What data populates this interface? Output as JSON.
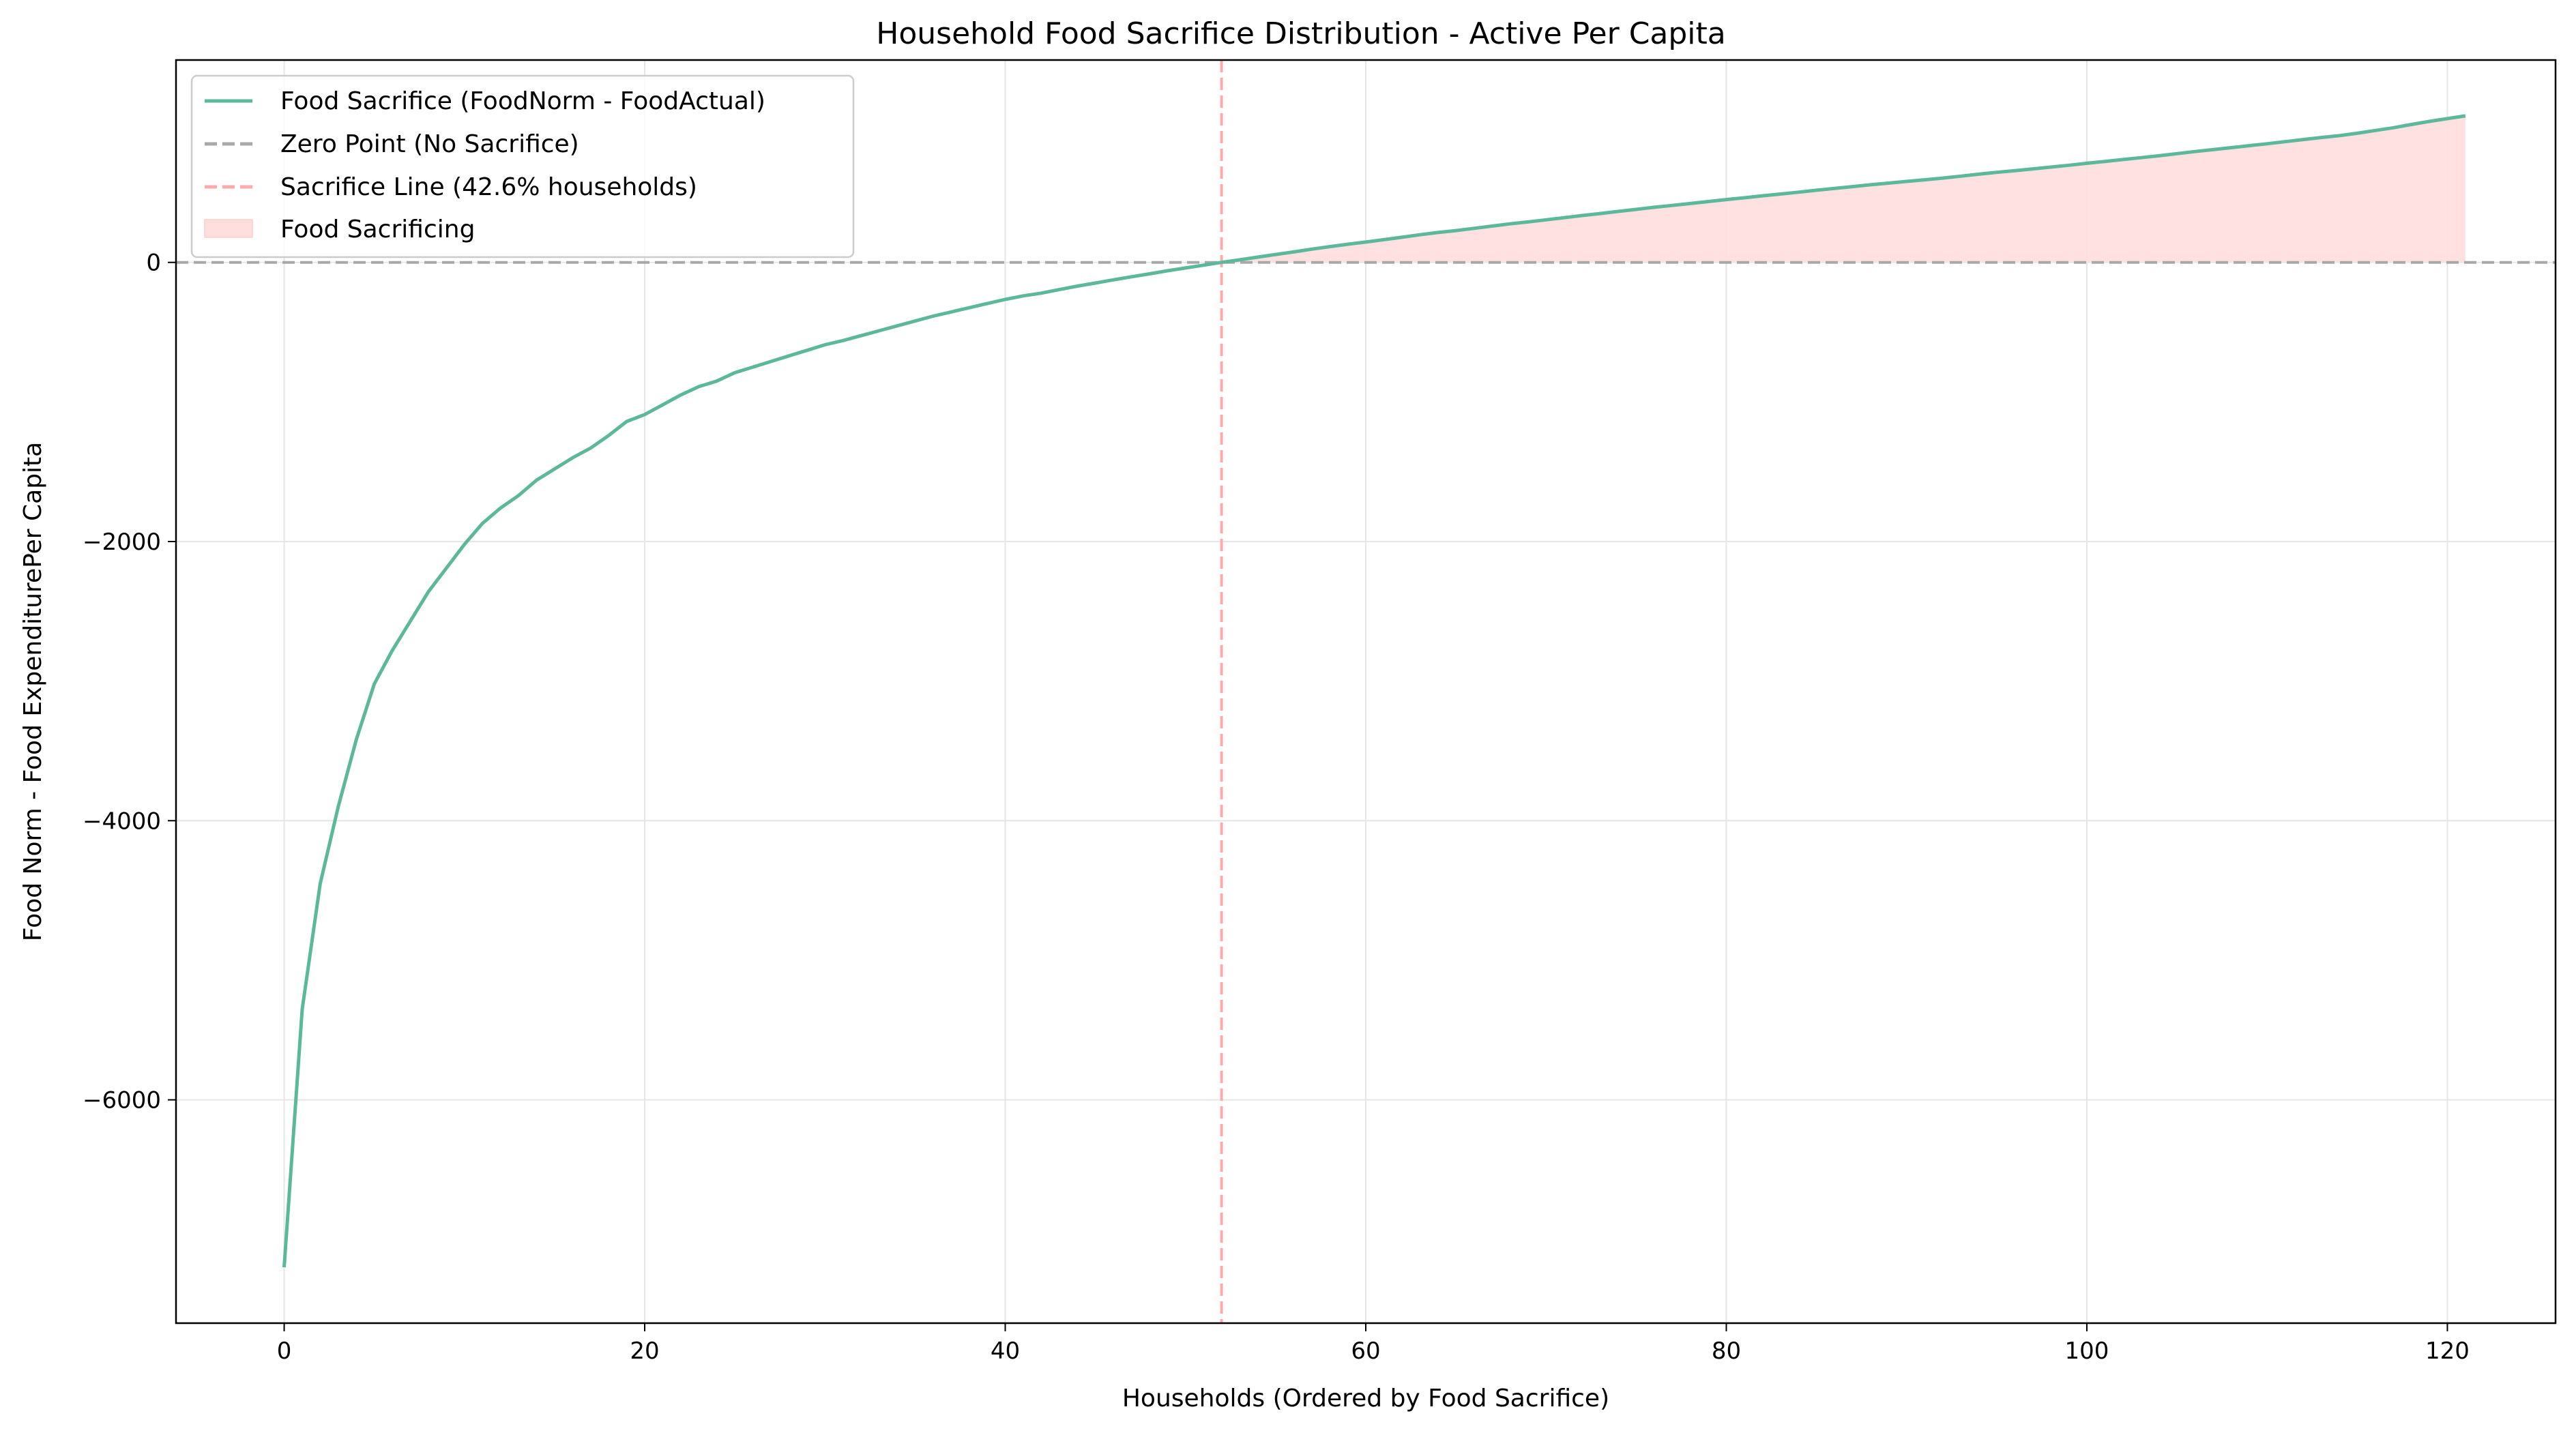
{
  "chart_data": {
    "type": "line",
    "title": "Household Food Sacrifice Distribution - Active Per Capita",
    "xlabel": "Households (Ordered by Food Sacrifice)",
    "ylabel": "Food Norm - Food ExpenditurePer Capita",
    "xlim": [
      -6,
      126
    ],
    "ylim": [
      -7600,
      1450
    ],
    "x_ticks": [
      0,
      20,
      40,
      60,
      80,
      100,
      120
    ],
    "y_ticks": [
      -6000,
      -4000,
      -2000,
      0
    ],
    "x_tick_labels": [
      "0",
      "20",
      "40",
      "60",
      "80",
      "100",
      "120"
    ],
    "y_tick_labels": [
      "−6000",
      "−4000",
      "−2000",
      "0"
    ],
    "grid": true,
    "legend_position": "top-left",
    "colors": {
      "series": "#5cb89a",
      "zero_line": "#a8a8a8",
      "sacrifice_line": "#ffaaaa",
      "fill": "#ffdede",
      "grid": "#e6e6e6"
    },
    "series": [
      {
        "name": "Food Sacrifice (FoodNorm - FoodActual)",
        "x": [
          0,
          1,
          2,
          3,
          4,
          5,
          6,
          7,
          8,
          9,
          10,
          11,
          12,
          13,
          14,
          15,
          16,
          17,
          18,
          19,
          20,
          21,
          22,
          23,
          24,
          25,
          26,
          27,
          28,
          29,
          30,
          31,
          32,
          33,
          34,
          35,
          36,
          37,
          38,
          39,
          40,
          41,
          42,
          43,
          44,
          45,
          46,
          47,
          48,
          49,
          50,
          51,
          52,
          53,
          54,
          55,
          56,
          57,
          58,
          59,
          60,
          61,
          62,
          63,
          64,
          65,
          66,
          67,
          68,
          69,
          70,
          71,
          72,
          73,
          74,
          75,
          76,
          77,
          78,
          79,
          80,
          81,
          82,
          83,
          84,
          85,
          86,
          87,
          88,
          89,
          90,
          91,
          92,
          93,
          94,
          95,
          96,
          97,
          98,
          99,
          100,
          101,
          102,
          103,
          104,
          105,
          106,
          107,
          108,
          109,
          110,
          111,
          112,
          113,
          114,
          115,
          116,
          117,
          118,
          119,
          120,
          121
        ],
        "y": [
          -7200,
          -5350,
          -4450,
          -3900,
          -3420,
          -3020,
          -2780,
          -2570,
          -2360,
          -2190,
          -2020,
          -1870,
          -1760,
          -1670,
          -1560,
          -1480,
          -1400,
          -1330,
          -1240,
          -1140,
          -1090,
          -1020,
          -950,
          -890,
          -850,
          -790,
          -750,
          -710,
          -670,
          -630,
          -590,
          -560,
          -525,
          -490,
          -455,
          -420,
          -385,
          -355,
          -325,
          -295,
          -265,
          -240,
          -220,
          -195,
          -170,
          -148,
          -125,
          -103,
          -82,
          -60,
          -40,
          -20,
          0,
          18,
          38,
          57,
          75,
          95,
          113,
          130,
          146,
          163,
          180,
          198,
          214,
          228,
          244,
          260,
          276,
          290,
          305,
          320,
          336,
          350,
          365,
          380,
          395,
          408,
          422,
          436,
          450,
          463,
          477,
          490,
          503,
          517,
          530,
          543,
          556,
          568,
          580,
          592,
          604,
          618,
          632,
          645,
          657,
          670,
          683,
          696,
          710,
          723,
          737,
          750,
          764,
          779,
          794,
          808,
          822,
          836,
          850,
          865,
          880,
          895,
          908,
          925,
          945,
          965,
          988,
          1010,
          1030,
          1050
        ]
      }
    ],
    "reference_lines": {
      "zero": {
        "y": 0,
        "label": "Zero Point (No Sacrifice)"
      },
      "sacrifice": {
        "x": 52,
        "label": "Sacrifice Line (42.6% households)"
      }
    },
    "fill_region": {
      "label": "Food Sacrificing",
      "from_x": 52,
      "to_x": 121
    },
    "legend": [
      "Food Sacrifice (FoodNorm - FoodActual)",
      "Zero Point (No Sacrifice)",
      "Sacrifice Line (42.6% households)",
      "Food Sacrificing"
    ]
  }
}
